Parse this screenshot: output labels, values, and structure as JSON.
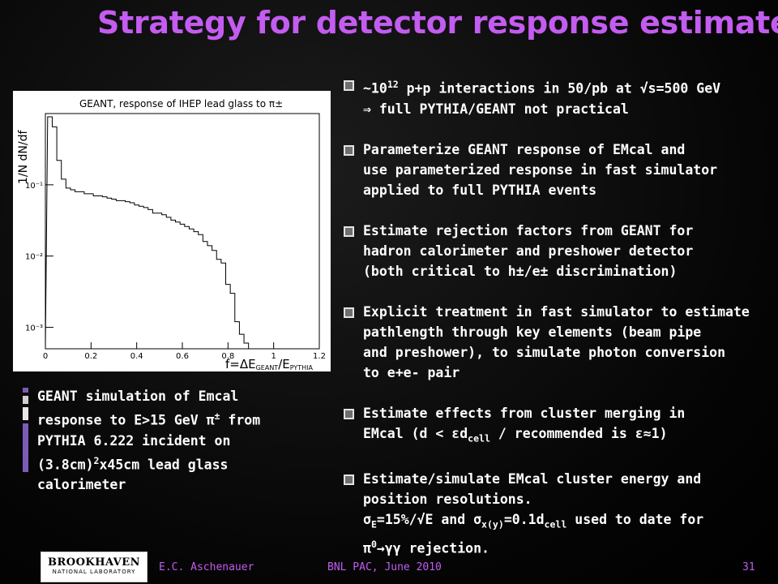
{
  "title": "Strategy for detector response estimates",
  "plot": {
    "heading": "GEANT, response of IHEP lead glass to π±",
    "ylabel": "1/N dN/df",
    "xlabel": "f=ΔE",
    "xlabel_sub1": "GEANT",
    "xlabel_mid": "/E",
    "xlabel_sub2": "PYTHIA",
    "xticks": [
      "0",
      "0.2",
      "0.4",
      "0.6",
      "0.8",
      "1",
      "1.2"
    ],
    "yticks": [
      "10⁻¹",
      "10⁻²",
      "10⁻³"
    ]
  },
  "chart_data": {
    "type": "bar",
    "title": "GEANT, response of IHEP lead glass to π±",
    "xlabel": "f=ΔE_GEANT/E_PYTHIA",
    "ylabel": "1/N dN/df",
    "xlim": [
      0,
      1.2
    ],
    "yscale": "log",
    "ylim": [
      0.0005,
      1
    ],
    "bin_width": 0.02,
    "x": [
      0.02,
      0.04,
      0.06,
      0.08,
      0.1,
      0.12,
      0.14,
      0.16,
      0.18,
      0.2,
      0.22,
      0.24,
      0.26,
      0.28,
      0.3,
      0.32,
      0.34,
      0.36,
      0.38,
      0.4,
      0.42,
      0.44,
      0.46,
      0.48,
      0.5,
      0.52,
      0.54,
      0.56,
      0.58,
      0.6,
      0.62,
      0.64,
      0.66,
      0.68,
      0.7,
      0.72,
      0.74,
      0.76,
      0.78,
      0.8,
      0.82,
      0.84,
      0.86,
      0.88
    ],
    "values": [
      0.9,
      0.65,
      0.22,
      0.12,
      0.09,
      0.085,
      0.08,
      0.08,
      0.075,
      0.075,
      0.07,
      0.07,
      0.068,
      0.065,
      0.063,
      0.06,
      0.06,
      0.058,
      0.056,
      0.052,
      0.05,
      0.048,
      0.045,
      0.04,
      0.04,
      0.038,
      0.035,
      0.032,
      0.03,
      0.028,
      0.026,
      0.024,
      0.022,
      0.02,
      0.016,
      0.014,
      0.012,
      0.009,
      0.008,
      0.004,
      0.003,
      0.0012,
      0.0008,
      0.0006
    ]
  },
  "bullets": [
    {
      "lines": [
        "~10",
        "⇒ full PYTHIA/GEANT not practical"
      ],
      "sup": "12",
      "rest": " p+p interactions in 50/pb at √s=500 GeV"
    },
    {
      "lines": [
        "Parameterize GEANT response of EMcal and",
        "use parameterized response in fast simulator",
        "applied to full PYTHIA events"
      ]
    },
    {
      "lines": [
        "Estimate rejection factors from GEANT for",
        "hadron calorimeter and preshower detector",
        "(both critical to h±/e± discrimination)"
      ]
    },
    {
      "lines": [
        "Explicit treatment in fast simulator to estimate",
        "pathlength through key elements (beam pipe",
        "and preshower), to simulate photon conversion",
        "to e+e- pair"
      ]
    },
    {
      "lines": [
        "Estimate effects from cluster merging in",
        "EMcal (d < εd",
        " / recommended is ε≈1)"
      ],
      "sub": "cell"
    },
    {
      "lines": [
        "Estimate/simulate EMcal cluster energy and",
        "position resolutions.",
        "σ",
        "=15%/√E and σ",
        "=0.1d",
        " used to date for",
        "π",
        "→γγ rejection."
      ],
      "subs": [
        "E",
        "x(y)",
        "cell"
      ],
      "sup0": "0"
    }
  ],
  "caption": {
    "l1": "GEANT simulation of Emcal",
    "l2a": "response to E>15 GeV π",
    "l2sup": "±",
    "l2b": " from",
    "l3": "PYTHIA 6.222 incident on",
    "l4a": "(3.8cm)",
    "l4sup": "2",
    "l4b": "x45cm lead glass",
    "l5": "calorimeter"
  },
  "footer": {
    "author": "E.C. Aschenauer",
    "event": "BNL PAC, June 2010",
    "page": "31",
    "logo_top": "BROOKHAVEN",
    "logo_bottom": "NATIONAL LABORATORY"
  },
  "colors": {
    "title": "#c35cf0",
    "footer": "#c35cf0",
    "background": "#000000"
  }
}
